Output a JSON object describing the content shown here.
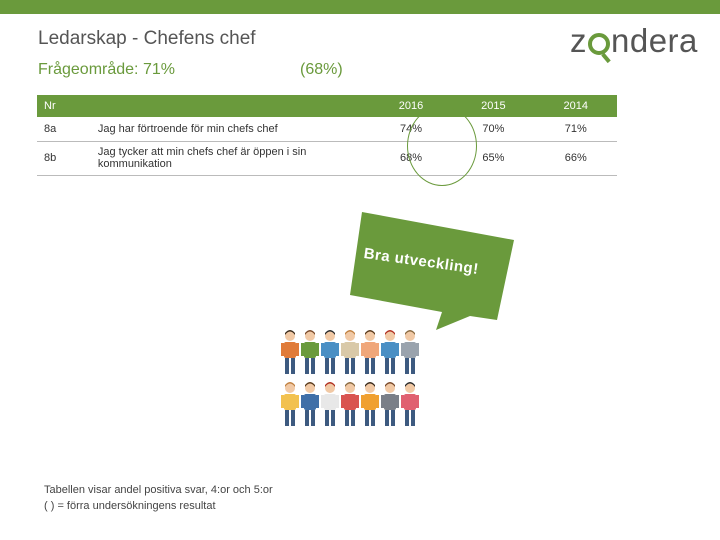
{
  "header": {
    "title": "Ledarskap - Chefens chef",
    "subtitle": "Frågeområde: 71%",
    "previous": "(68%)",
    "logo": "zondera",
    "accent_color": "#6a9a3c"
  },
  "table": {
    "headers": [
      "Nr",
      "",
      "2016",
      "2015",
      "2014"
    ],
    "rows": [
      {
        "nr": "8a",
        "text": "Jag har förtroende för min chefs chef",
        "y2016": "74%",
        "y2015": "70%",
        "y2014": "71%"
      },
      {
        "nr": "8b",
        "text": "Jag tycker att min chefs chef är öppen i sin kommunikation",
        "y2016": "68%",
        "y2015": "65%",
        "y2014": "66%"
      }
    ]
  },
  "callout": {
    "text": "Bra utveckling!"
  },
  "illustration": {
    "icon": "group-of-people-icon"
  },
  "footer": {
    "line1": "Tabellen visar andel positiva svar, 4:or och 5:or",
    "line2": "( ) = förra undersökningens resultat"
  }
}
